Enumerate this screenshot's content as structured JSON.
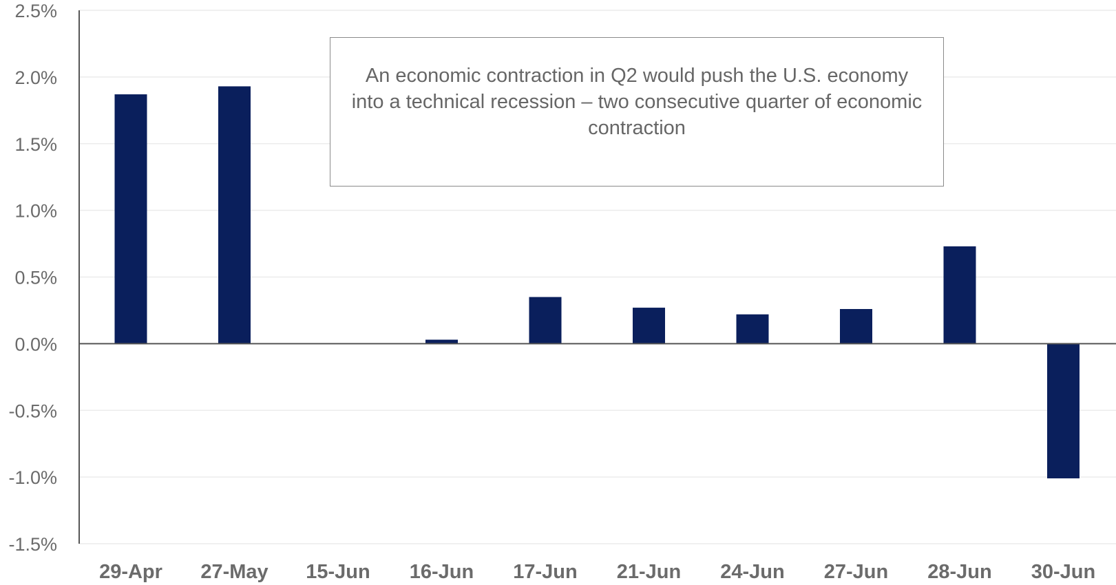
{
  "chart_data": {
    "type": "bar",
    "categories": [
      "29-Apr",
      "27-May",
      "15-Jun",
      "16-Jun",
      "17-Jun",
      "21-Jun",
      "24-Jun",
      "27-Jun",
      "28-Jun",
      "30-Jun"
    ],
    "values": [
      1.87,
      1.93,
      0.0,
      0.03,
      0.35,
      0.27,
      0.22,
      0.26,
      0.73,
      -1.01
    ],
    "ylim": [
      -1.5,
      2.5
    ],
    "yticks": [
      2.5,
      2.0,
      1.5,
      1.0,
      0.5,
      0.0,
      -0.5,
      -1.0,
      -1.5
    ],
    "ytick_labels": [
      "2.5%",
      "2.0%",
      "1.5%",
      "1.0%",
      "0.5%",
      "0.0%",
      "-0.5%",
      "-1.0%",
      "-1.5%"
    ],
    "title": "",
    "xlabel": "",
    "ylabel": "",
    "grid": true,
    "legend": false,
    "bar_color": "#0a1f5c",
    "annotation": "An economic contraction in Q2 would push the U.S. economy into a technical recession – two consecutive quarter of economic contraction"
  }
}
